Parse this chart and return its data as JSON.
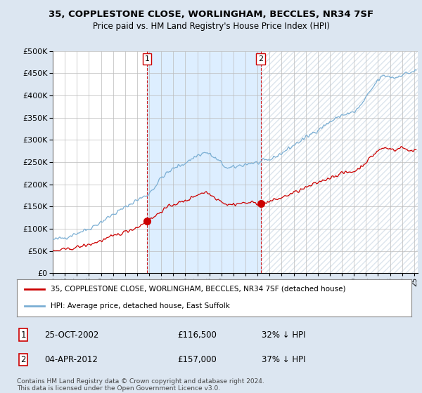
{
  "title1": "35, COPPLESTONE CLOSE, WORLINGHAM, BECCLES, NR34 7SF",
  "title2": "Price paid vs. HM Land Registry's House Price Index (HPI)",
  "legend_line1": "35, COPPLESTONE CLOSE, WORLINGHAM, BECCLES, NR34 7SF (detached house)",
  "legend_line2": "HPI: Average price, detached house, East Suffolk",
  "transaction1_date": "25-OCT-2002",
  "transaction1_price": "£116,500",
  "transaction1_hpi": "32% ↓ HPI",
  "transaction1_x": 2002.82,
  "transaction1_y": 116500,
  "transaction2_date": "04-APR-2012",
  "transaction2_price": "£157,000",
  "transaction2_hpi": "37% ↓ HPI",
  "transaction2_x": 2012.27,
  "transaction2_y": 157000,
  "house_color": "#cc0000",
  "hpi_color": "#7bafd4",
  "shade_color": "#ddeeff",
  "background_color": "#dce6f1",
  "plot_bg_color": "#ffffff",
  "footer": "Contains HM Land Registry data © Crown copyright and database right 2024.\nThis data is licensed under the Open Government Licence v3.0.",
  "ylim": [
    0,
    500000
  ],
  "yticks": [
    0,
    50000,
    100000,
    150000,
    200000,
    250000,
    300000,
    350000,
    400000,
    450000,
    500000
  ],
  "xlim_start": 1995.0,
  "xlim_end": 2025.3
}
